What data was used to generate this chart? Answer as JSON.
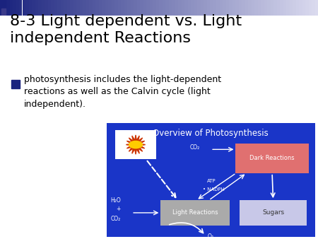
{
  "title": "8-3 Light dependent vs. Light\nindependent Reactions",
  "bullet_text": "photosynthesis includes the light-dependent\nreactions as well as the Calvin cycle (light\nindependent).",
  "diagram_title": "Overview of Photosynthesis",
  "bg_color": "#ffffff",
  "diagram_bg": "#1a35c8",
  "title_fontsize": 16,
  "bullet_fontsize": 9,
  "header_color_left": "#1a237e",
  "header_color_right": "#e0e0f0",
  "bullet_square_color": "#1a237e",
  "light_reactions_color": "#aaaaaa",
  "dark_reactions_color": "#e07070",
  "sugars_color": "#c8c8e8",
  "arrow_color": "#ffffff",
  "label_color": "#ffffff",
  "sugars_label_color": "#333333"
}
